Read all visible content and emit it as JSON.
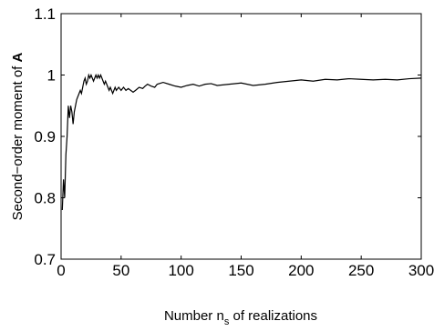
{
  "chart_data": {
    "type": "line",
    "title": "",
    "xlabel": {
      "before": "Number n",
      "subscript": "s",
      "after": " of realizations"
    },
    "ylabel": {
      "text": "Second−order moment of ",
      "bold": "A"
    },
    "xlim": [
      0,
      300
    ],
    "ylim": [
      0.7,
      1.1
    ],
    "xticks": [
      0,
      50,
      100,
      150,
      200,
      250,
      300
    ],
    "xtick_labels": [
      "0",
      "50",
      "100",
      "150",
      "200",
      "250",
      "300"
    ],
    "yticks": [
      0.7,
      0.8,
      0.9,
      1.0,
      1.1
    ],
    "ytick_labels": [
      "0.7",
      "0.8",
      "0.9",
      "1",
      "1.1"
    ],
    "grid": false,
    "line_color": "#000000",
    "series": [
      {
        "x": [
          1,
          2,
          3,
          4,
          5,
          6,
          7,
          8,
          9,
          10,
          11,
          12,
          13,
          14,
          15,
          16,
          17,
          18,
          19,
          20,
          21,
          22,
          23,
          24,
          25,
          26,
          27,
          28,
          29,
          30,
          31,
          32,
          33,
          34,
          35,
          36,
          37,
          38,
          39,
          40,
          41,
          42,
          43,
          44,
          45,
          46,
          48,
          50,
          52,
          54,
          56,
          58,
          60,
          62,
          65,
          68,
          70,
          72,
          75,
          78,
          80,
          85,
          90,
          95,
          100,
          105,
          110,
          115,
          120,
          125,
          130,
          140,
          150,
          160,
          170,
          180,
          190,
          200,
          210,
          220,
          230,
          240,
          250,
          260,
          270,
          280,
          290,
          300
        ],
        "y": [
          0.78,
          0.83,
          0.8,
          0.87,
          0.9,
          0.95,
          0.93,
          0.95,
          0.94,
          0.92,
          0.94,
          0.95,
          0.96,
          0.965,
          0.97,
          0.975,
          0.97,
          0.98,
          0.99,
          0.995,
          0.985,
          0.99,
          1.0,
          0.995,
          1.0,
          0.995,
          0.99,
          0.995,
          1.0,
          0.995,
          1.0,
          0.995,
          1.0,
          0.995,
          0.99,
          0.985,
          0.99,
          0.985,
          0.98,
          0.975,
          0.98,
          0.975,
          0.97,
          0.975,
          0.98,
          0.975,
          0.98,
          0.975,
          0.98,
          0.975,
          0.978,
          0.975,
          0.972,
          0.975,
          0.98,
          0.978,
          0.982,
          0.985,
          0.982,
          0.98,
          0.985,
          0.988,
          0.985,
          0.982,
          0.98,
          0.983,
          0.985,
          0.982,
          0.985,
          0.986,
          0.983,
          0.985,
          0.987,
          0.983,
          0.985,
          0.988,
          0.99,
          0.992,
          0.99,
          0.993,
          0.992,
          0.994,
          0.993,
          0.992,
          0.993,
          0.992,
          0.994,
          0.995
        ]
      }
    ]
  }
}
